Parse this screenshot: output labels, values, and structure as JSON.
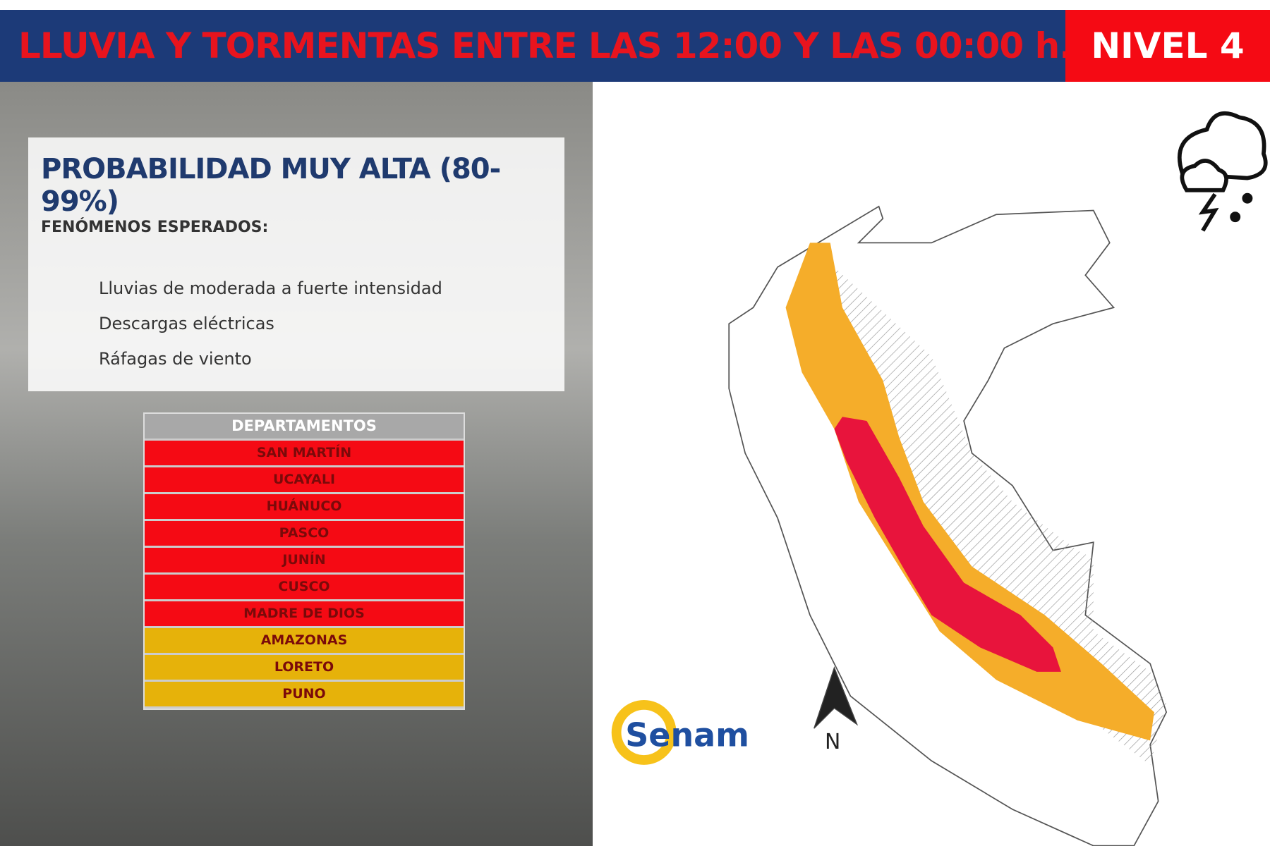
{
  "header": {
    "title": "LLUVIA Y TORMENTAS ENTRE LAS  12:00 Y LAS  00:00 h.",
    "level": "NIVEL 4"
  },
  "panel": {
    "title": "PROBABILIDAD  MUY ALTA (80-99%)",
    "subtitle": "FENÓMENOS ESPERADOS:",
    "items": [
      "Lluvias de moderada a fuerte intensidad",
      "Descargas eléctricas",
      "Ráfagas de viento"
    ]
  },
  "table": {
    "header": "DEPARTAMENTOS",
    "rows": [
      {
        "name": "SAN MARTÍN",
        "color": "#f50a14"
      },
      {
        "name": "UCAYALI",
        "color": "#f50a14"
      },
      {
        "name": "HUÁNUCO",
        "color": "#f50a14"
      },
      {
        "name": "PASCO",
        "color": "#f50a14"
      },
      {
        "name": "JUNÍN",
        "color": "#f50a14"
      },
      {
        "name": "CUSCO",
        "color": "#f50a14"
      },
      {
        "name": "MADRE DE DIOS",
        "color": "#f50a14"
      },
      {
        "name": "AMAZONAS",
        "color": "#e6b20a"
      },
      {
        "name": "LORETO",
        "color": "#e6b20a"
      },
      {
        "name": "PUNO",
        "color": "#e6b20a"
      }
    ]
  },
  "logo": {
    "text": "Senam"
  },
  "map": {
    "north": "N"
  }
}
